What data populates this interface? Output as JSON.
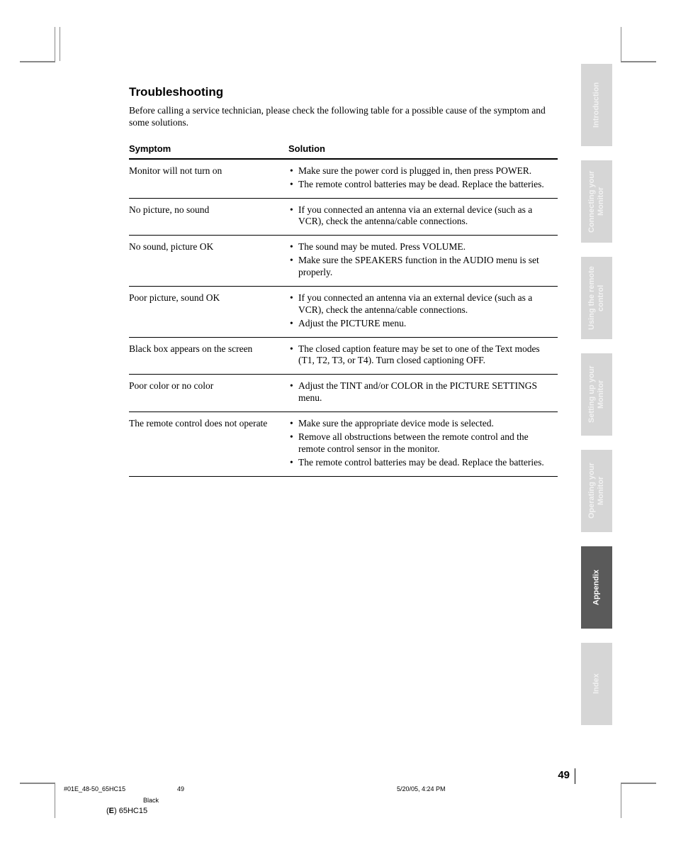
{
  "title": "Troubleshooting",
  "intro": "Before calling a service technician, please check the following table for a possible cause of the symptom and some solutions.",
  "headers": {
    "symptom": "Symptom",
    "solution": "Solution"
  },
  "rows": [
    {
      "symptom": "Monitor will not turn on",
      "solutions": [
        "Make sure the power cord is plugged in, then press POWER.",
        "The remote control batteries may be dead. Replace the batteries."
      ]
    },
    {
      "symptom": "No picture, no sound",
      "solutions": [
        "If you connected an antenna via an external device (such as a VCR), check the antenna/cable connections."
      ]
    },
    {
      "symptom": "No sound, picture OK",
      "solutions": [
        "The sound may be muted. Press VOLUME.",
        "Make sure the SPEAKERS function in the AUDIO menu is set properly."
      ]
    },
    {
      "symptom": "Poor picture, sound OK",
      "solutions": [
        "If you connected an antenna via an external device (such as a VCR), check the antenna/cable connections.",
        "Adjust the PICTURE menu."
      ]
    },
    {
      "symptom": "Black box appears on the screen",
      "solutions": [
        "The closed caption feature may be set to one of the Text modes (T1, T2, T3, or T4). Turn closed captioning OFF."
      ]
    },
    {
      "symptom": "Poor color or no color",
      "solutions": [
        "Adjust the TINT and/or COLOR in the PICTURE SETTINGS menu."
      ]
    },
    {
      "symptom": "The remote control does not operate",
      "solutions": [
        "Make sure the appropriate device mode is selected.",
        "Remove all obstructions between the remote control and the remote control sensor in the monitor.",
        "The remote control batteries may be dead. Replace the batteries."
      ]
    }
  ],
  "tabs": [
    {
      "label": "Introduction",
      "active": false
    },
    {
      "label": "Connecting your Monitor",
      "active": false
    },
    {
      "label": "Using the remote control",
      "active": false
    },
    {
      "label": "Setting up your Monitor",
      "active": false
    },
    {
      "label": "Operating your Monitor",
      "active": false
    },
    {
      "label": "Appendix",
      "active": true
    },
    {
      "label": "Index",
      "active": false
    }
  ],
  "page_number": "49",
  "footer": {
    "file": "#01E_48-50_65HC15",
    "page": "49",
    "datetime": "5/20/05, 4:24 PM",
    "color": "Black",
    "model_prefix": "(E) ",
    "model": "65HC15"
  }
}
